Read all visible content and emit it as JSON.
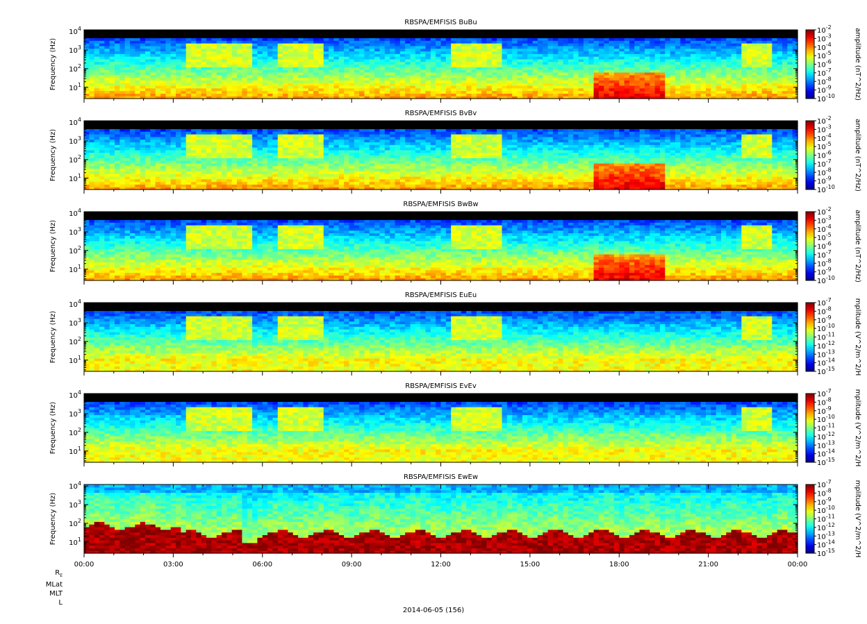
{
  "figure": {
    "date_label": "2014-06-05 (156)",
    "orbit_rows": [
      "R_E",
      "MLat",
      "MLT",
      "L"
    ]
  },
  "chart_data": [
    {
      "type": "heatmap",
      "title": "RBSPA/EMFISIS  BuBu",
      "ylabel": "Frequency (Hz)",
      "ylog": true,
      "ylim": [
        2.5,
        12000
      ],
      "yticks": [
        10,
        100,
        1000,
        10000
      ],
      "colorbar": {
        "label": "amplitude (nT^2/Hz)",
        "log": true,
        "range": [
          -10,
          -2
        ],
        "ticks": [
          -2,
          -3,
          -4,
          -5,
          -6,
          -7,
          -8,
          -9,
          -10
        ]
      },
      "xlim": [
        "00:00",
        "24:00"
      ],
      "xticks": [
        "00:00",
        "03:00",
        "06:00",
        "09:00",
        "12:00",
        "15:00",
        "18:00",
        "21:00",
        "00:00"
      ]
    },
    {
      "type": "heatmap",
      "title": "RBSPA/EMFISIS  BvBv",
      "ylabel": "Frequency (Hz)",
      "ylog": true,
      "ylim": [
        2.5,
        12000
      ],
      "yticks": [
        10,
        100,
        1000,
        10000
      ],
      "colorbar": {
        "label": "amplitude (nT^2/Hz)",
        "log": true,
        "range": [
          -10,
          -2
        ],
        "ticks": [
          -2,
          -3,
          -4,
          -5,
          -6,
          -7,
          -8,
          -9,
          -10
        ]
      },
      "xlim": [
        "00:00",
        "24:00"
      ],
      "xticks": [
        "00:00",
        "03:00",
        "06:00",
        "09:00",
        "12:00",
        "15:00",
        "18:00",
        "21:00",
        "00:00"
      ]
    },
    {
      "type": "heatmap",
      "title": "RBSPA/EMFISIS  BwBw",
      "ylabel": "Frequency (Hz)",
      "ylog": true,
      "ylim": [
        2.5,
        12000
      ],
      "yticks": [
        10,
        100,
        1000,
        10000
      ],
      "colorbar": {
        "label": "amplitude (nT^2/Hz)",
        "log": true,
        "range": [
          -10,
          -2
        ],
        "ticks": [
          -2,
          -3,
          -4,
          -5,
          -6,
          -7,
          -8,
          -9,
          -10
        ]
      },
      "xlim": [
        "00:00",
        "24:00"
      ],
      "xticks": [
        "00:00",
        "03:00",
        "06:00",
        "09:00",
        "12:00",
        "15:00",
        "18:00",
        "21:00",
        "00:00"
      ]
    },
    {
      "type": "heatmap",
      "title": "RBSPA/EMFISIS  EuEu",
      "ylabel": "Frequency (Hz)",
      "ylog": true,
      "ylim": [
        2.5,
        12000
      ],
      "yticks": [
        10,
        100,
        1000,
        10000
      ],
      "colorbar": {
        "label": "mplitude (V^2/m^2/H",
        "log": true,
        "range": [
          -15,
          -7
        ],
        "ticks": [
          -7,
          -8,
          -9,
          -10,
          -11,
          -12,
          -13,
          -14,
          -15
        ]
      },
      "xlim": [
        "00:00",
        "24:00"
      ],
      "xticks": [
        "00:00",
        "03:00",
        "06:00",
        "09:00",
        "12:00",
        "15:00",
        "18:00",
        "21:00",
        "00:00"
      ]
    },
    {
      "type": "heatmap",
      "title": "RBSPA/EMFISIS  EvEv",
      "ylabel": "Frequency (Hz)",
      "ylog": true,
      "ylim": [
        2.5,
        12000
      ],
      "yticks": [
        10,
        100,
        1000,
        10000
      ],
      "colorbar": {
        "label": "mplitude (V^2/m^2/H",
        "log": true,
        "range": [
          -15,
          -7
        ],
        "ticks": [
          -7,
          -8,
          -9,
          -10,
          -11,
          -12,
          -13,
          -14,
          -15
        ]
      },
      "xlim": [
        "00:00",
        "24:00"
      ],
      "xticks": [
        "00:00",
        "03:00",
        "06:00",
        "09:00",
        "12:00",
        "15:00",
        "18:00",
        "21:00",
        "00:00"
      ]
    },
    {
      "type": "heatmap",
      "title": "RBSPA/EMFISIS  EwEw",
      "ylabel": "Frequency (Hz)",
      "ylog": true,
      "ylim": [
        2.5,
        12000
      ],
      "yticks": [
        10,
        100,
        1000,
        10000
      ],
      "colorbar": {
        "label": "mplitude (V^2/m^2/H",
        "log": true,
        "range": [
          -15,
          -7
        ],
        "ticks": [
          -7,
          -8,
          -9,
          -10,
          -11,
          -12,
          -13,
          -14,
          -15
        ]
      },
      "xlim": [
        "00:00",
        "24:00"
      ],
      "xticks": [
        "00:00",
        "03:00",
        "06:00",
        "09:00",
        "12:00",
        "15:00",
        "18:00",
        "21:00",
        "00:00"
      ]
    }
  ]
}
